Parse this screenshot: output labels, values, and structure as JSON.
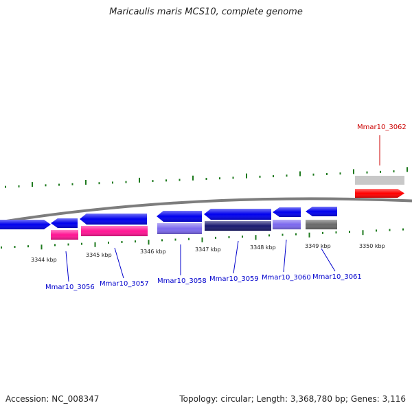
{
  "title": "Maricaulis maris MCS10, complete genome",
  "footer": {
    "accession": "Accession: NC_008347",
    "summary": "Topology: circular; Length: 3,368,780 bp; Genes: 3,116"
  },
  "colors": {
    "backbone": "#7d7d7d",
    "tick": "#1e7a1e",
    "strand_forward": "#0000ee",
    "label_blue": "#0000cc",
    "label_red": "#cc0000",
    "cds_pink": "#ff1493",
    "cds_lavender": "#7b68ee",
    "cds_navy": "#191970",
    "cds_grey": "#696969",
    "cds_red": "#ff0000",
    "cds_silver": "#c8c8c8"
  },
  "kbp_labels": [
    "3344 kbp",
    "3345 kbp",
    "3346 kbp",
    "3347 kbp",
    "3348 kbp",
    "3349 kbp",
    "3350 kbp"
  ],
  "genes": [
    {
      "label": "Mmar10_3056",
      "color": "label_blue"
    },
    {
      "label": "Mmar10_3057",
      "color": "label_blue"
    },
    {
      "label": "Mmar10_3058",
      "color": "label_blue"
    },
    {
      "label": "Mmar10_3059",
      "color": "label_blue"
    },
    {
      "label": "Mmar10_3060",
      "color": "label_blue"
    },
    {
      "label": "Mmar10_3061",
      "color": "label_blue"
    },
    {
      "label": "Mmar10_3062",
      "color": "label_red"
    }
  ]
}
